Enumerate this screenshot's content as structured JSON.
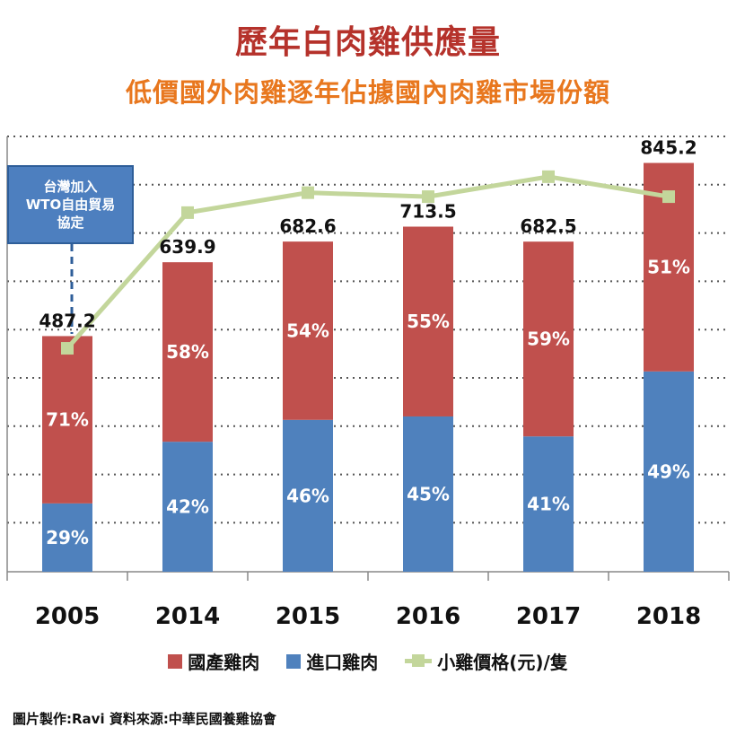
{
  "title": "歷年白肉雞供應量",
  "subtitle": "低價國外肉雞逐年佔據國內肉雞市場份額",
  "callout": "台灣加入\nWTO自由貿易\n協定",
  "footer": "圖片製作:Ravi 資料來源:中華民國養雞協會",
  "colors": {
    "domestic": "#c0504d",
    "imported": "#4f81bd",
    "price": "#c3d69b"
  },
  "legend": [
    {
      "key": "domestic",
      "label": "國產雞肉",
      "kind": "box"
    },
    {
      "key": "imported",
      "label": "進口雞肉",
      "kind": "box"
    },
    {
      "key": "price",
      "label": "小雞價格(元)/隻",
      "kind": "line"
    }
  ],
  "chart_data": {
    "type": "bar",
    "stacked": true,
    "categories": [
      "2005",
      "2014",
      "2015",
      "2016",
      "2017",
      "2018"
    ],
    "totals": [
      487.2,
      639.9,
      682.6,
      713.5,
      682.5,
      845.2
    ],
    "total_labels": [
      "487.2",
      "639.9",
      "682.6",
      "713.5",
      "682.5",
      "845.2"
    ],
    "series": [
      {
        "name": "進口雞肉",
        "key": "imported",
        "percent": [
          29,
          42,
          46,
          45,
          41,
          49
        ],
        "labels": [
          "29%",
          "42%",
          "46%",
          "45%",
          "41%",
          "49%"
        ]
      },
      {
        "name": "國產雞肉",
        "key": "domestic",
        "percent": [
          71,
          58,
          54,
          55,
          59,
          51
        ],
        "labels": [
          "71%",
          "58%",
          "54%",
          "55%",
          "59%",
          "51%"
        ]
      }
    ],
    "line_series": {
      "name": "小雞價格(元)/隻",
      "values": [
        0.56,
        0.9,
        0.95,
        0.94,
        0.99,
        0.94
      ]
    },
    "ylim": [
      0,
      900
    ],
    "grid": true,
    "legend_position": "bottom"
  }
}
